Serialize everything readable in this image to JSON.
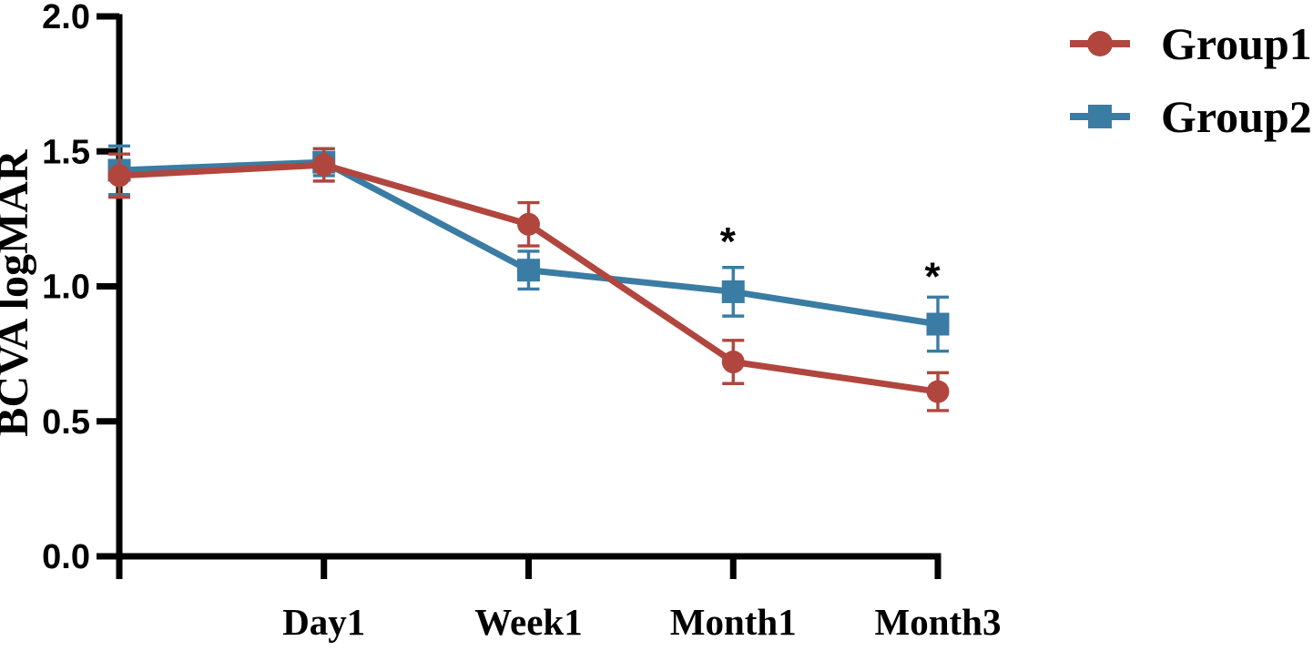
{
  "chart_data": {
    "type": "line",
    "title": "",
    "ylabel": "BCVA logMAR",
    "xlabel": "",
    "ylim": [
      0.0,
      2.0
    ],
    "yticks": [
      "0.0",
      "0.5",
      "1.0",
      "1.5",
      "2.0"
    ],
    "categories": [
      "",
      "Day1",
      "Week1",
      "Month1",
      "Month3"
    ],
    "grid": false,
    "legend_position": "top-right",
    "error_bars": true,
    "series": [
      {
        "name": "Group1",
        "marker": "circle",
        "color": "#b1463e",
        "values": [
          1.41,
          1.45,
          1.23,
          0.72,
          0.61
        ],
        "errors": [
          0.08,
          0.06,
          0.08,
          0.08,
          0.07
        ]
      },
      {
        "name": "Group2",
        "marker": "square",
        "color": "#3a7ca4",
        "values": [
          1.43,
          1.46,
          1.06,
          0.98,
          0.86
        ],
        "errors": [
          0.09,
          0.05,
          0.07,
          0.09,
          0.1
        ]
      }
    ],
    "annotations": [
      {
        "text": "*",
        "category_index": 3,
        "y": 1.19
      },
      {
        "text": "*",
        "category_index": 4,
        "y": 1.06
      }
    ],
    "colors": {
      "axis": "#000000",
      "background": "#ffffff",
      "annotation": "#000000"
    }
  }
}
